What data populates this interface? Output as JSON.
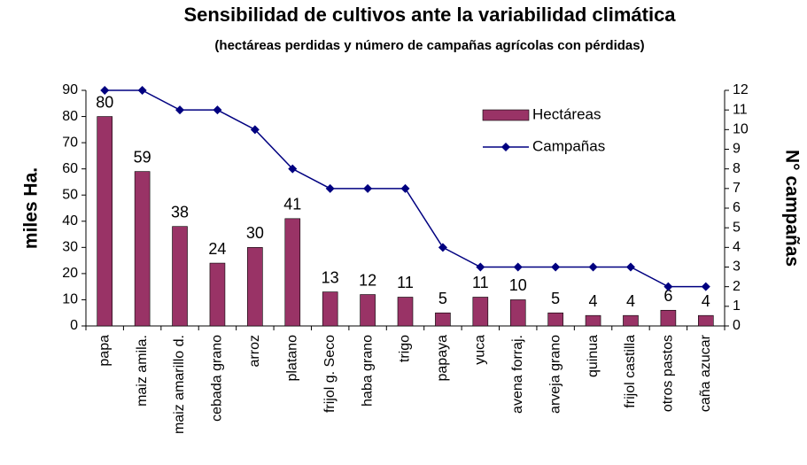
{
  "chart_data": {
    "type": "bar",
    "title": "Sensibilidad de cultivos ante la variabilidad climática",
    "subtitle": "(hectáreas perdidas y número de campañas agrícolas con pérdidas)",
    "y_label": "miles Ha.",
    "y2_label": "N° campañas",
    "categories": [
      "papa",
      "maiz amila.",
      "maiz amarillo d.",
      "cebada grano",
      "arroz",
      "platano",
      "frijol g. Seco",
      "haba grano",
      "trigo",
      "papaya",
      "yuca",
      "avena forraj.",
      "arveja grano",
      "quinua",
      "frijol castilla",
      "otros pastos",
      "caña azucar"
    ],
    "series": [
      {
        "name": "Hectáreas",
        "type": "bar",
        "color": "#993366",
        "values": [
          80,
          59,
          38,
          24,
          30,
          41,
          13,
          12,
          11,
          5,
          11,
          10,
          5,
          4,
          4,
          6,
          4
        ]
      },
      {
        "name": "Campañas",
        "type": "line",
        "axis": "y2",
        "color": "#000080",
        "values": [
          12,
          12,
          11,
          11,
          10,
          8,
          7,
          7,
          7,
          4,
          3,
          3,
          3,
          3,
          3,
          2,
          2
        ]
      }
    ],
    "ylim": [
      0,
      90
    ],
    "yticks": [
      0,
      10,
      20,
      30,
      40,
      50,
      60,
      70,
      80,
      90
    ],
    "y2lim": [
      0,
      12
    ],
    "y2ticks": [
      0,
      1,
      2,
      3,
      4,
      5,
      6,
      7,
      8,
      9,
      10,
      11,
      12
    ],
    "legend": "upper right"
  }
}
